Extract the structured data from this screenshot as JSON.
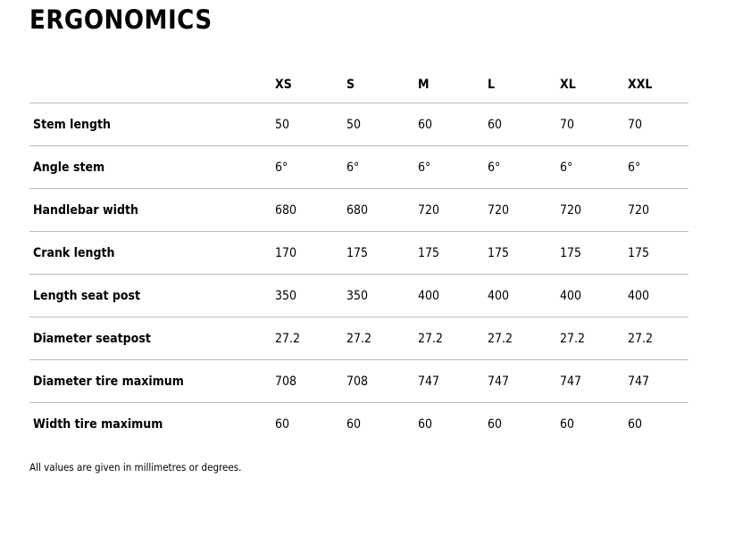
{
  "page": {
    "title": "ERGONOMICS",
    "footnote": "All values are given in millimetres or degrees."
  },
  "table": {
    "columns": [
      "XS",
      "S",
      "M",
      "L",
      "XL",
      "XXL"
    ],
    "rows": [
      {
        "label": "Stem length",
        "values": [
          "50",
          "50",
          "60",
          "60",
          "70",
          "70"
        ]
      },
      {
        "label": "Angle stem",
        "values": [
          "6°",
          "6°",
          "6°",
          "6°",
          "6°",
          "6°"
        ]
      },
      {
        "label": "Handlebar width",
        "values": [
          "680",
          "680",
          "720",
          "720",
          "720",
          "720"
        ]
      },
      {
        "label": "Crank length",
        "values": [
          "170",
          "175",
          "175",
          "175",
          "175",
          "175"
        ]
      },
      {
        "label": "Length seat post",
        "values": [
          "350",
          "350",
          "400",
          "400",
          "400",
          "400"
        ]
      },
      {
        "label": "Diameter seatpost",
        "values": [
          "27.2",
          "27.2",
          "27.2",
          "27.2",
          "27.2",
          "27.2"
        ]
      },
      {
        "label": "Diameter tire maximum",
        "values": [
          "708",
          "708",
          "747",
          "747",
          "747",
          "747"
        ]
      },
      {
        "label": "Width tire maximum",
        "values": [
          "60",
          "60",
          "60",
          "60",
          "60",
          "60"
        ]
      }
    ]
  },
  "colors": {
    "text": "#000000",
    "divider": "#bdbdbd",
    "background": "#ffffff"
  }
}
